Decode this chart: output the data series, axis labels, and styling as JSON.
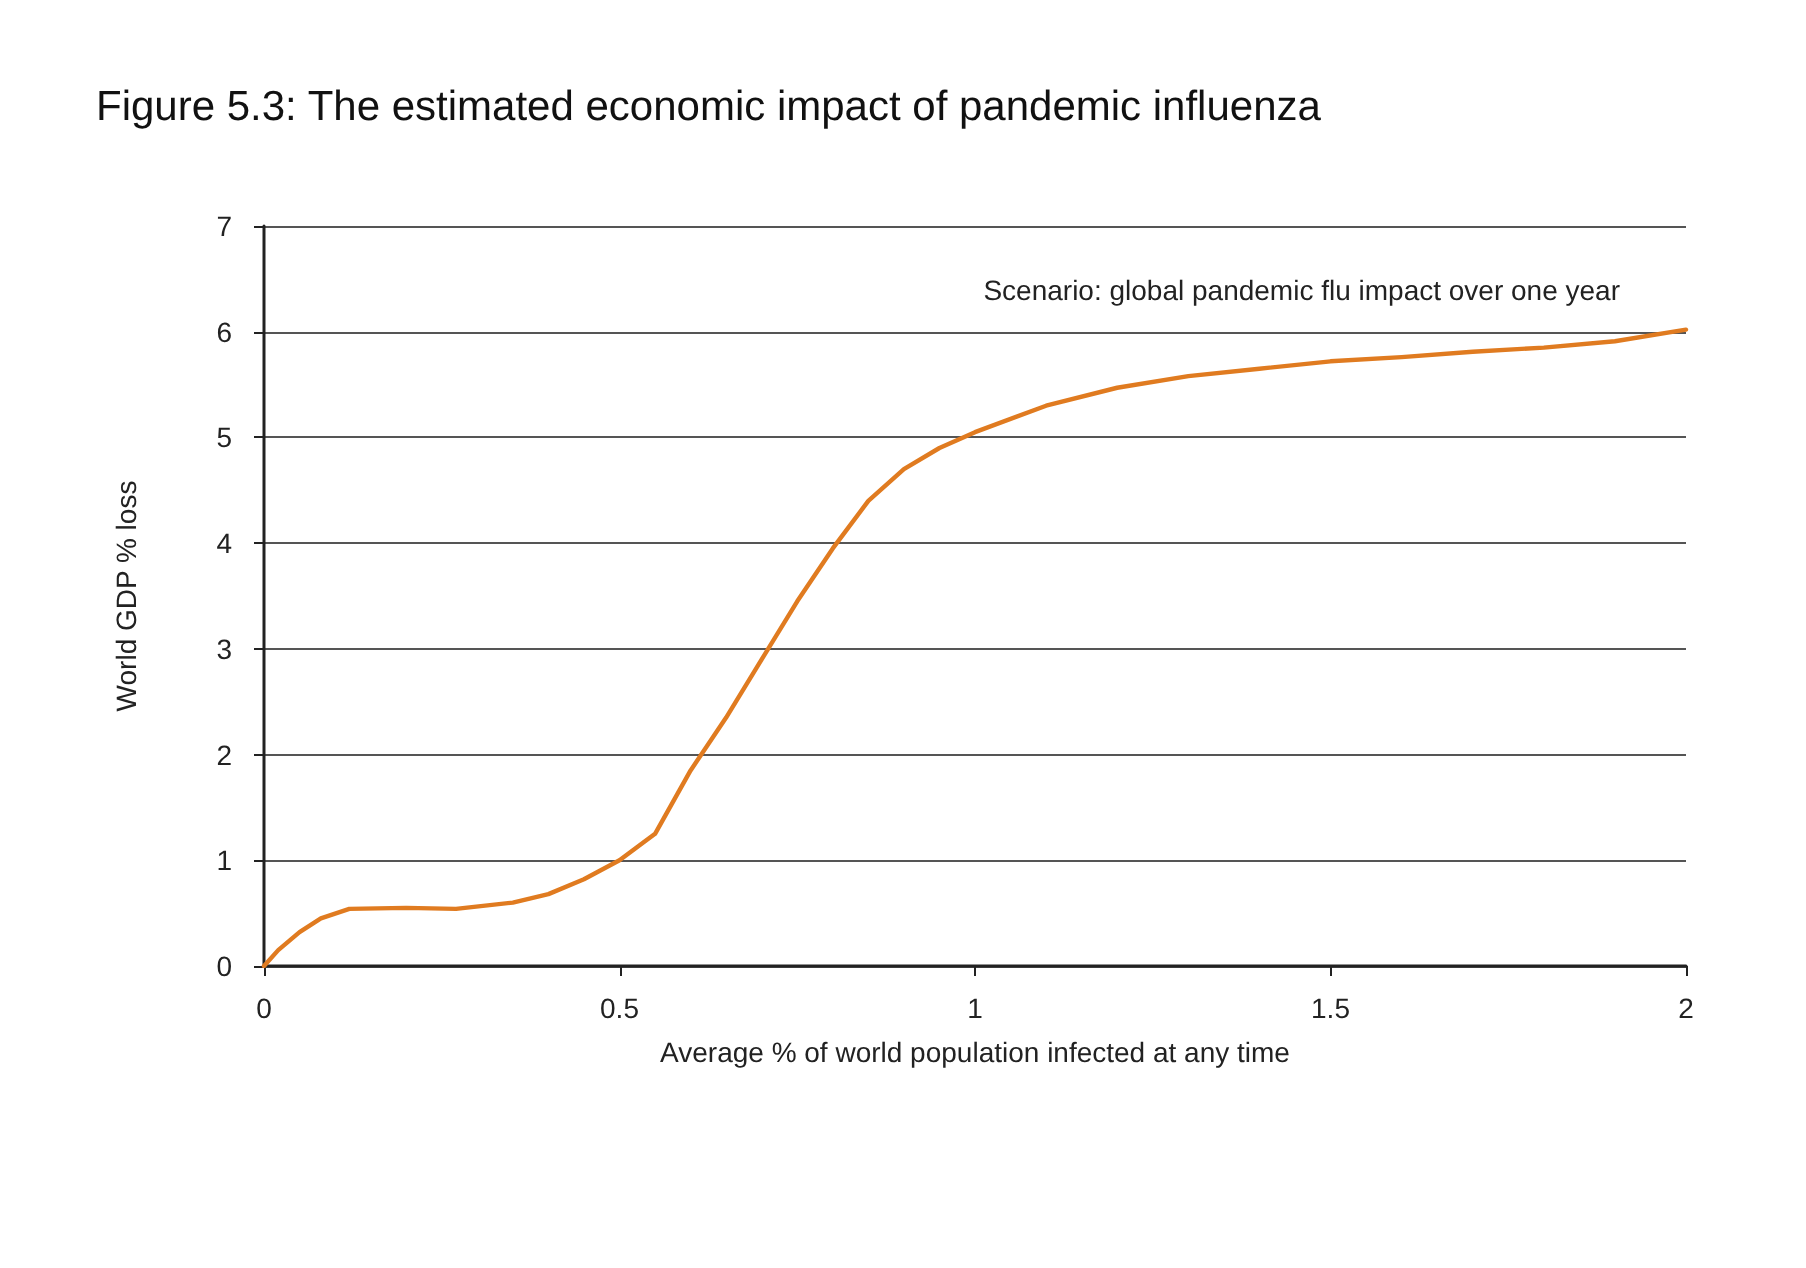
{
  "chart_data": {
    "type": "line",
    "title": "Figure 5.3: The estimated economic impact of pandemic influenza",
    "xlabel": "Average % of world population infected at any time",
    "ylabel": "World GDP % loss",
    "annotations": [
      "Scenario: global pandemic flu impact over one year"
    ],
    "x": [
      0,
      0.02,
      0.05,
      0.08,
      0.12,
      0.2,
      0.27,
      0.35,
      0.4,
      0.45,
      0.5,
      0.55,
      0.6,
      0.65,
      0.7,
      0.75,
      0.8,
      0.85,
      0.9,
      0.95,
      1.0,
      1.1,
      1.2,
      1.3,
      1.4,
      1.5,
      1.6,
      1.7,
      1.8,
      1.9,
      2.0
    ],
    "series": [
      {
        "color": "#e07b20",
        "values": [
          0,
          0.15,
          0.32,
          0.45,
          0.54,
          0.55,
          0.54,
          0.6,
          0.68,
          0.82,
          1.0,
          1.25,
          1.85,
          2.35,
          2.9,
          3.45,
          3.95,
          4.4,
          4.7,
          4.9,
          5.05,
          5.3,
          5.47,
          5.58,
          5.65,
          5.72,
          5.76,
          5.81,
          5.85,
          5.91,
          6.02
        ]
      }
    ],
    "xlim": [
      0,
      2
    ],
    "xticks": [
      0,
      0.5,
      1,
      1.5,
      2
    ],
    "ylim": [
      0,
      7
    ],
    "yticks": [
      0,
      1,
      2,
      3,
      4,
      5,
      6,
      7
    ],
    "grid": "y",
    "marker": "none",
    "line_style": "solid"
  }
}
